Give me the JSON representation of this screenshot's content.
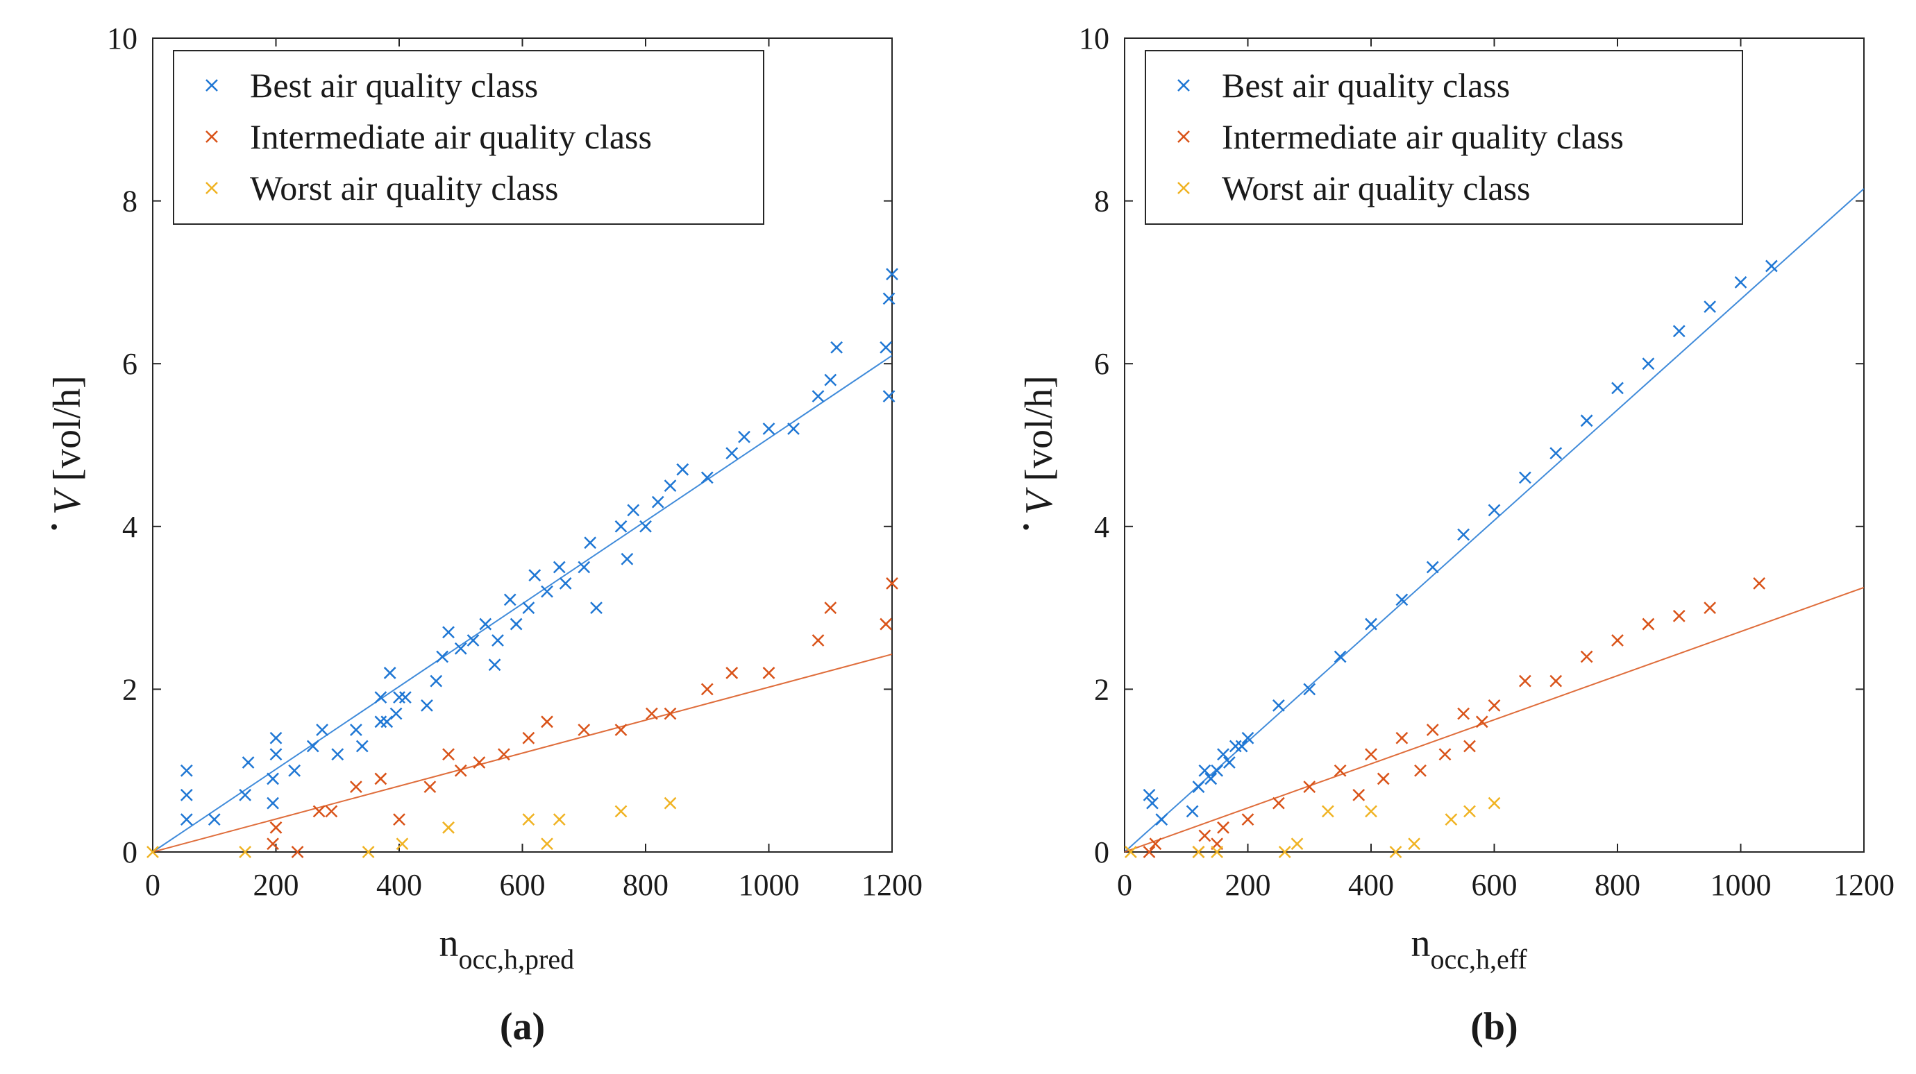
{
  "chart_data": [
    {
      "type": "scatter",
      "panel_label": "(a)",
      "xlabel": "n",
      "xlabel_subscript": "occ,h,pred",
      "ylabel_symbol": "V",
      "ylabel_unit": "[vol/h]",
      "xlim": [
        0,
        1200
      ],
      "ylim": [
        0,
        10
      ],
      "xticks": [
        0,
        200,
        400,
        600,
        800,
        1000,
        1200
      ],
      "yticks": [
        0,
        2,
        4,
        6,
        8,
        10
      ],
      "legend_position": "top-left",
      "series": [
        {
          "name": "Best air quality class",
          "color": "#1f77d4",
          "points": [
            [
              55,
              0.4
            ],
            [
              55,
              0.7
            ],
            [
              55,
              1.0
            ],
            [
              100,
              0.4
            ],
            [
              150,
              0.7
            ],
            [
              155,
              1.1
            ],
            [
              195,
              0.6
            ],
            [
              195,
              0.9
            ],
            [
              200,
              1.2
            ],
            [
              200,
              1.4
            ],
            [
              230,
              1.0
            ],
            [
              260,
              1.3
            ],
            [
              275,
              1.5
            ],
            [
              300,
              1.2
            ],
            [
              330,
              1.5
            ],
            [
              340,
              1.3
            ],
            [
              370,
              1.6
            ],
            [
              370,
              1.9
            ],
            [
              380,
              1.6
            ],
            [
              385,
              2.2
            ],
            [
              395,
              1.7
            ],
            [
              400,
              1.9
            ],
            [
              410,
              1.9
            ],
            [
              445,
              1.8
            ],
            [
              460,
              2.1
            ],
            [
              470,
              2.4
            ],
            [
              480,
              2.7
            ],
            [
              500,
              2.5
            ],
            [
              520,
              2.6
            ],
            [
              540,
              2.8
            ],
            [
              555,
              2.3
            ],
            [
              560,
              2.6
            ],
            [
              580,
              3.1
            ],
            [
              590,
              2.8
            ],
            [
              610,
              3.0
            ],
            [
              620,
              3.4
            ],
            [
              640,
              3.2
            ],
            [
              660,
              3.5
            ],
            [
              670,
              3.3
            ],
            [
              700,
              3.5
            ],
            [
              710,
              3.8
            ],
            [
              720,
              3.0
            ],
            [
              760,
              4.0
            ],
            [
              770,
              3.6
            ],
            [
              780,
              4.2
            ],
            [
              800,
              4.0
            ],
            [
              820,
              4.3
            ],
            [
              840,
              4.5
            ],
            [
              860,
              4.7
            ],
            [
              900,
              4.6
            ],
            [
              940,
              4.9
            ],
            [
              960,
              5.1
            ],
            [
              1000,
              5.2
            ],
            [
              1040,
              5.2
            ],
            [
              1080,
              5.6
            ],
            [
              1100,
              5.8
            ],
            [
              1110,
              6.2
            ],
            [
              1190,
              6.2
            ],
            [
              1195,
              5.6
            ],
            [
              1195,
              6.8
            ],
            [
              1200,
              7.1
            ]
          ]
        },
        {
          "name": "Intermediate air quality class",
          "color": "#d95319",
          "points": [
            [
              195,
              0.1
            ],
            [
              200,
              0.3
            ],
            [
              235,
              0.0
            ],
            [
              270,
              0.5
            ],
            [
              290,
              0.5
            ],
            [
              330,
              0.8
            ],
            [
              370,
              0.9
            ],
            [
              400,
              0.4
            ],
            [
              450,
              0.8
            ],
            [
              480,
              1.2
            ],
            [
              500,
              1.0
            ],
            [
              530,
              1.1
            ],
            [
              570,
              1.2
            ],
            [
              610,
              1.4
            ],
            [
              640,
              1.6
            ],
            [
              700,
              1.5
            ],
            [
              760,
              1.5
            ],
            [
              810,
              1.7
            ],
            [
              840,
              1.7
            ],
            [
              900,
              2.0
            ],
            [
              940,
              2.2
            ],
            [
              1000,
              2.2
            ],
            [
              1080,
              2.6
            ],
            [
              1100,
              3.0
            ],
            [
              1190,
              2.8
            ],
            [
              1200,
              3.3
            ]
          ]
        },
        {
          "name": "Worst air quality class",
          "color": "#f0b323",
          "points": [
            [
              0,
              0.0
            ],
            [
              150,
              0.0
            ],
            [
              350,
              0.0
            ],
            [
              405,
              0.1
            ],
            [
              480,
              0.3
            ],
            [
              610,
              0.4
            ],
            [
              640,
              0.1
            ],
            [
              660,
              0.4
            ],
            [
              760,
              0.5
            ],
            [
              840,
              0.6
            ]
          ]
        }
      ],
      "fit_lines": [
        {
          "series": "Best air quality class",
          "x": [
            0,
            1200
          ],
          "y": [
            0.0,
            6.1
          ]
        },
        {
          "series": "Intermediate air quality class",
          "x": [
            0,
            1200
          ],
          "y": [
            0.0,
            2.43
          ]
        }
      ]
    },
    {
      "type": "scatter",
      "panel_label": "(b)",
      "xlabel": "n",
      "xlabel_subscript": "occ,h,eff",
      "ylabel_symbol": "V",
      "ylabel_unit": "[vol/h]",
      "xlim": [
        0,
        1200
      ],
      "ylim": [
        0,
        10
      ],
      "xticks": [
        0,
        200,
        400,
        600,
        800,
        1000,
        1200
      ],
      "yticks": [
        0,
        2,
        4,
        6,
        8,
        10
      ],
      "legend_position": "top-left",
      "series": [
        {
          "name": "Best air quality class",
          "color": "#1f77d4",
          "points": [
            [
              40,
              0.7
            ],
            [
              45,
              0.6
            ],
            [
              60,
              0.4
            ],
            [
              110,
              0.5
            ],
            [
              120,
              0.8
            ],
            [
              130,
              1.0
            ],
            [
              140,
              0.9
            ],
            [
              150,
              1.0
            ],
            [
              160,
              1.2
            ],
            [
              170,
              1.1
            ],
            [
              180,
              1.3
            ],
            [
              190,
              1.3
            ],
            [
              200,
              1.4
            ],
            [
              250,
              1.8
            ],
            [
              300,
              2.0
            ],
            [
              350,
              2.4
            ],
            [
              400,
              2.8
            ],
            [
              450,
              3.1
            ],
            [
              500,
              3.5
            ],
            [
              550,
              3.9
            ],
            [
              600,
              4.2
            ],
            [
              650,
              4.6
            ],
            [
              700,
              4.9
            ],
            [
              750,
              5.3
            ],
            [
              800,
              5.7
            ],
            [
              850,
              6.0
            ],
            [
              900,
              6.4
            ],
            [
              950,
              6.7
            ],
            [
              1000,
              7.0
            ],
            [
              1050,
              7.2
            ]
          ]
        },
        {
          "name": "Intermediate air quality class",
          "color": "#d95319",
          "points": [
            [
              40,
              0.0
            ],
            [
              50,
              0.1
            ],
            [
              120,
              0.0
            ],
            [
              130,
              0.2
            ],
            [
              150,
              0.1
            ],
            [
              160,
              0.3
            ],
            [
              200,
              0.4
            ],
            [
              250,
              0.6
            ],
            [
              300,
              0.8
            ],
            [
              350,
              1.0
            ],
            [
              380,
              0.7
            ],
            [
              400,
              1.2
            ],
            [
              420,
              0.9
            ],
            [
              450,
              1.4
            ],
            [
              480,
              1.0
            ],
            [
              500,
              1.5
            ],
            [
              520,
              1.2
            ],
            [
              550,
              1.7
            ],
            [
              560,
              1.3
            ],
            [
              580,
              1.6
            ],
            [
              600,
              1.8
            ],
            [
              650,
              2.1
            ],
            [
              700,
              2.1
            ],
            [
              750,
              2.4
            ],
            [
              800,
              2.6
            ],
            [
              850,
              2.8
            ],
            [
              900,
              2.9
            ],
            [
              950,
              3.0
            ],
            [
              1030,
              3.3
            ]
          ]
        },
        {
          "name": "Worst air quality class",
          "color": "#f0b323",
          "points": [
            [
              10,
              0.0
            ],
            [
              120,
              0.0
            ],
            [
              150,
              0.0
            ],
            [
              260,
              0.0
            ],
            [
              280,
              0.1
            ],
            [
              330,
              0.5
            ],
            [
              400,
              0.5
            ],
            [
              440,
              0.0
            ],
            [
              470,
              0.1
            ],
            [
              530,
              0.4
            ],
            [
              560,
              0.5
            ],
            [
              600,
              0.6
            ]
          ]
        }
      ],
      "fit_lines": [
        {
          "series": "Best air quality class",
          "x": [
            0,
            1200
          ],
          "y": [
            0.0,
            8.15
          ]
        },
        {
          "series": "Intermediate air quality class",
          "x": [
            0,
            1200
          ],
          "y": [
            0.0,
            3.25
          ]
        }
      ]
    }
  ]
}
